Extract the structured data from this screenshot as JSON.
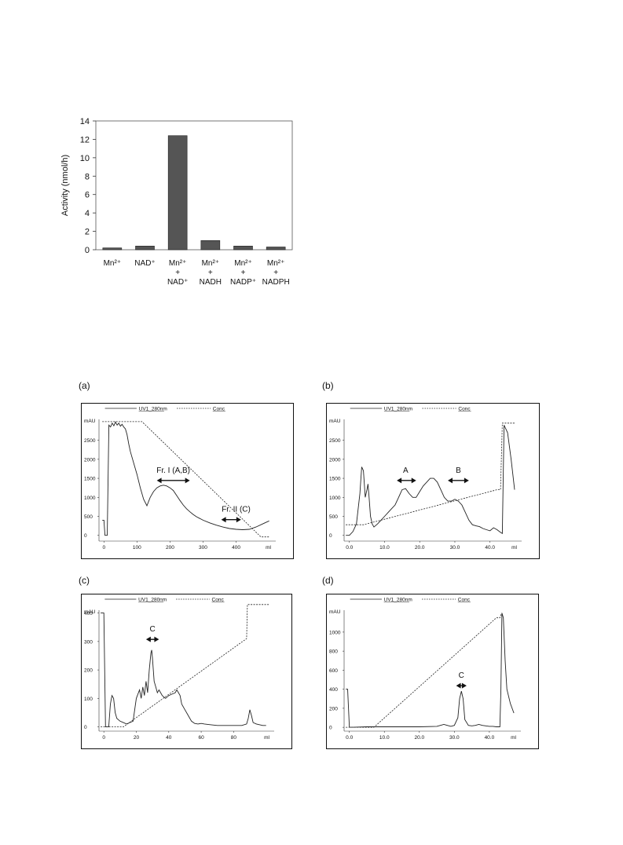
{
  "chart_data": [
    {
      "type": "bar",
      "ylabel": "Activity (nmol/h)",
      "ylim": [
        0,
        14
      ],
      "yticks": [
        0,
        2,
        4,
        6,
        8,
        10,
        12,
        14
      ],
      "grid": false,
      "categories": [
        [
          "Mn²⁺"
        ],
        [
          "NAD⁺"
        ],
        [
          "Mn²⁺",
          "+",
          "NAD⁺"
        ],
        [
          "Mn²⁺",
          "+",
          "NADH"
        ],
        [
          "Mn²⁺",
          "+",
          "NADP⁺"
        ],
        [
          "Mn²⁺",
          "+",
          "NADPH"
        ]
      ],
      "values": [
        0.2,
        0.4,
        12.4,
        1.0,
        0.4,
        0.3
      ],
      "bar_color": "#555555"
    },
    {
      "panel": "(a)",
      "type": "line",
      "legend": [
        "UV1_280nm",
        "Conc"
      ],
      "ylabel": "mAU",
      "xlabel": "ml",
      "xlim": [
        -15,
        520
      ],
      "ylim": [
        -150,
        3050
      ],
      "xticks": [
        0,
        100,
        200,
        300,
        400
      ],
      "xticklabels": [
        "0",
        "100",
        "200",
        "300",
        "400"
      ],
      "yticks": [
        0,
        500,
        1000,
        1500,
        2000,
        2500
      ],
      "series": [
        {
          "name": "UV1_280nm",
          "style": "solid",
          "x": [
            -5,
            0,
            3,
            5,
            10,
            15,
            20,
            25,
            30,
            35,
            40,
            45,
            50,
            55,
            60,
            65,
            70,
            75,
            80,
            90,
            100,
            110,
            120,
            130,
            140,
            150,
            160,
            170,
            180,
            190,
            200,
            210,
            220,
            230,
            240,
            250,
            260,
            270,
            280,
            300,
            320,
            340,
            360,
            380,
            400,
            420,
            440,
            460,
            480,
            500
          ],
          "y": [
            400,
            400,
            0,
            0,
            0,
            2900,
            2850,
            2950,
            2880,
            2980,
            2900,
            2950,
            2870,
            2920,
            2850,
            2800,
            2650,
            2400,
            2200,
            1900,
            1600,
            1250,
            950,
            780,
            1000,
            1150,
            1250,
            1300,
            1320,
            1300,
            1250,
            1180,
            1050,
            920,
            800,
            700,
            620,
            550,
            490,
            400,
            330,
            270,
            220,
            180,
            160,
            150,
            160,
            220,
            300,
            380
          ]
        },
        {
          "name": "Conc",
          "style": "dashed",
          "x": [
            -5,
            115,
            475,
            500
          ],
          "y": [
            2990,
            2990,
            -40,
            -40
          ]
        }
      ],
      "annotations": [
        {
          "text": "Fr. I (A,B)",
          "x": 210,
          "y": 1650,
          "span": [
            160,
            260
          ]
        },
        {
          "text": "Fr. II (C)",
          "x": 400,
          "y": 620,
          "span": [
            355,
            415
          ]
        }
      ]
    },
    {
      "panel": "(b)",
      "type": "line",
      "legend": [
        "UV1_280nm",
        "Conc"
      ],
      "ylabel": "mAU",
      "xlabel": "ml",
      "xlim": [
        -1.5,
        49
      ],
      "ylim": [
        -150,
        3050
      ],
      "xticks": [
        0,
        10,
        20,
        30,
        40
      ],
      "xticklabels": [
        "0.0",
        "10.0",
        "20.0",
        "30.0",
        "40.0"
      ],
      "yticks": [
        0,
        500,
        1000,
        1500,
        2000,
        2500
      ],
      "series": [
        {
          "name": "UV1_280nm",
          "style": "solid",
          "x": [
            -1,
            0,
            1,
            2,
            3,
            3.5,
            4,
            4.5,
            5,
            5.3,
            5.6,
            6,
            6.5,
            7,
            8,
            9,
            10,
            11,
            12,
            13,
            14,
            15,
            16,
            17,
            18,
            19,
            20,
            21,
            22,
            23,
            24,
            25,
            26,
            27,
            28,
            29,
            30,
            31,
            32,
            33,
            34,
            35,
            36,
            37,
            38,
            39,
            40,
            41,
            42,
            43,
            43.5,
            44,
            45,
            46,
            47
          ],
          "y": [
            0,
            0,
            100,
            300,
            1100,
            1800,
            1700,
            1000,
            1200,
            1350,
            1000,
            500,
            300,
            220,
            300,
            400,
            500,
            600,
            700,
            800,
            1000,
            1200,
            1230,
            1100,
            1000,
            1000,
            1150,
            1300,
            1400,
            1500,
            1500,
            1400,
            1200,
            1000,
            900,
            900,
            950,
            900,
            800,
            600,
            400,
            280,
            250,
            230,
            180,
            150,
            120,
            200,
            150,
            80,
            50,
            2900,
            2700,
            2000,
            1200
          ]
        },
        {
          "name": "Conc",
          "style": "dashed",
          "x": [
            -1,
            4,
            42,
            43,
            43.5,
            47
          ],
          "y": [
            280,
            280,
            1200,
            1200,
            2950,
            2950
          ]
        }
      ],
      "annotations": [
        {
          "text": "A",
          "x": 16,
          "y": 1650,
          "span": [
            13.5,
            19
          ]
        },
        {
          "text": "B",
          "x": 31,
          "y": 1650,
          "span": [
            28,
            34
          ]
        }
      ]
    },
    {
      "panel": "(c)",
      "type": "line",
      "legend": [
        "UV1_280nm",
        "Conc"
      ],
      "ylabel": "mAU",
      "xlabel": "ml",
      "xlim": [
        -3,
        105
      ],
      "ylim": [
        -15,
        410
      ],
      "xticks": [
        0,
        20,
        40,
        60,
        80
      ],
      "xticklabels": [
        "0",
        "20",
        "40",
        "60",
        "80"
      ],
      "yticks": [
        0,
        100,
        200,
        300,
        400
      ],
      "series": [
        {
          "name": "UV1_280nm",
          "style": "solid",
          "x": [
            -2,
            -1,
            0,
            1,
            2,
            3,
            4,
            5,
            6,
            7,
            8,
            10,
            12,
            14,
            16,
            18,
            20,
            22,
            23,
            24,
            25,
            26,
            27,
            28,
            29,
            29.5,
            30,
            31,
            32,
            33,
            34,
            35,
            36,
            38,
            40,
            42,
            44,
            45,
            46,
            47,
            48,
            50,
            52,
            54,
            56,
            58,
            60,
            62,
            65,
            70,
            75,
            80,
            85,
            88,
            89,
            90,
            91,
            92,
            94,
            98,
            100
          ],
          "y": [
            400,
            400,
            400,
            0,
            0,
            0,
            80,
            110,
            100,
            50,
            30,
            20,
            15,
            10,
            15,
            20,
            100,
            130,
            100,
            140,
            110,
            160,
            120,
            200,
            260,
            270,
            240,
            160,
            140,
            120,
            130,
            120,
            110,
            100,
            110,
            115,
            120,
            130,
            120,
            110,
            80,
            60,
            40,
            20,
            12,
            10,
            12,
            10,
            8,
            5,
            5,
            5,
            5,
            10,
            30,
            60,
            40,
            15,
            10,
            5,
            5
          ]
        },
        {
          "name": "Conc",
          "style": "dashed",
          "x": [
            -2,
            12,
            88,
            88.5,
            102
          ],
          "y": [
            0,
            0,
            310,
            430,
            430
          ]
        }
      ],
      "annotations": [
        {
          "text": "C",
          "x": 30,
          "y": 335,
          "span": [
            26,
            34
          ]
        }
      ]
    },
    {
      "panel": "(d)",
      "type": "line",
      "legend": [
        "UV1_280nm",
        "Conc"
      ],
      "ylabel": "mAU",
      "xlabel": "ml",
      "xlim": [
        -1.5,
        49
      ],
      "ylim": [
        -40,
        1230
      ],
      "xticks": [
        0,
        10,
        20,
        30,
        40
      ],
      "xticklabels": [
        "0.0",
        "10.0",
        "20.0",
        "30.0",
        "40.0"
      ],
      "yticks": [
        0,
        200,
        400,
        600,
        800,
        1000
      ],
      "series": [
        {
          "name": "UV1_280nm",
          "style": "solid",
          "x": [
            -1,
            -0.5,
            0,
            0.5,
            1,
            5,
            10,
            15,
            20,
            25,
            26,
            27,
            28,
            29,
            30,
            31,
            31.5,
            32,
            32.5,
            33,
            34,
            35,
            36,
            37,
            38,
            39,
            40,
            41,
            42,
            43,
            43.3,
            43.6,
            44,
            44.5,
            45,
            46,
            47
          ],
          "y": [
            400,
            400,
            0,
            0,
            0,
            5,
            5,
            5,
            5,
            10,
            20,
            30,
            20,
            10,
            20,
            100,
            300,
            380,
            300,
            80,
            20,
            15,
            20,
            30,
            20,
            15,
            10,
            10,
            5,
            5,
            400,
            1200,
            1150,
            700,
            400,
            250,
            150
          ]
        },
        {
          "name": "Conc",
          "style": "dashed",
          "x": [
            -1,
            7,
            42,
            43,
            43.5
          ],
          "y": [
            0,
            0,
            1150,
            1150,
            1200
          ]
        }
      ],
      "annotations": [
        {
          "text": "C",
          "x": 32,
          "y": 520,
          "span": [
            30.5,
            33.5
          ]
        }
      ]
    }
  ]
}
